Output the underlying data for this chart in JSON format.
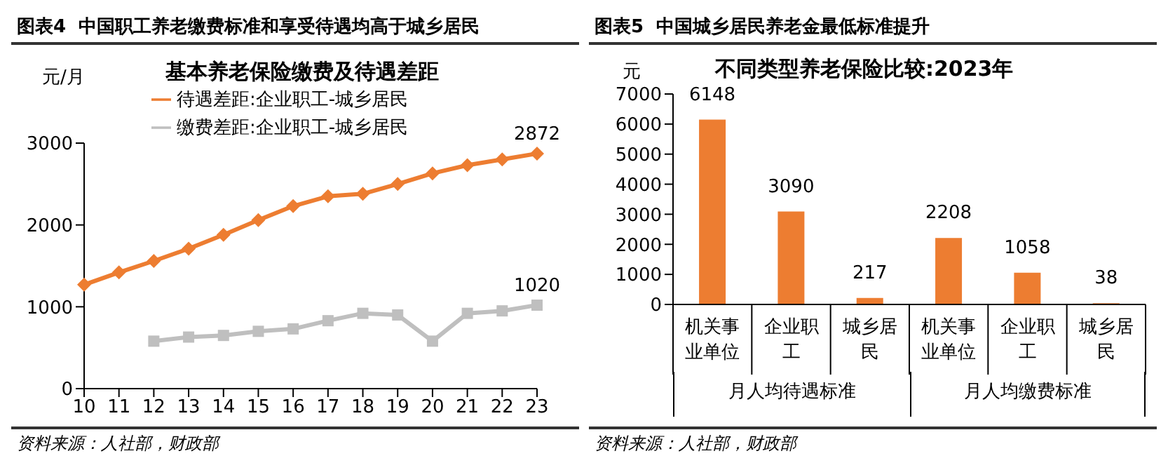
{
  "chart_data": [
    {
      "type": "line",
      "title": "图表4  中国职工养老缴费标准和享受待遇均高于城乡居民",
      "subtitle": "基本养老保险缴费及待遇差距",
      "ylabel": "元/月",
      "categories": [
        "10",
        "11",
        "12",
        "13",
        "14",
        "15",
        "16",
        "17",
        "18",
        "19",
        "20",
        "21",
        "22",
        "23"
      ],
      "series": [
        {
          "name": "待遇差距:企业职工-城乡居民",
          "color": "#ed7d31",
          "marker": "diamond",
          "values": [
            1270,
            1420,
            1560,
            1710,
            1880,
            2060,
            2230,
            2350,
            2380,
            2500,
            2630,
            2730,
            2800,
            2872
          ],
          "value_labels": [
            null,
            null,
            null,
            null,
            null,
            null,
            null,
            null,
            null,
            null,
            null,
            null,
            null,
            "2872"
          ]
        },
        {
          "name": "缴费差距:企业职工-城乡居民",
          "color": "#bfbfbf",
          "marker": "square",
          "values": [
            null,
            null,
            580,
            630,
            650,
            700,
            730,
            830,
            920,
            900,
            580,
            920,
            950,
            1020
          ],
          "value_labels": [
            null,
            null,
            null,
            null,
            null,
            null,
            null,
            null,
            null,
            null,
            null,
            null,
            null,
            "1020"
          ]
        }
      ],
      "ylim": [
        0,
        3000
      ],
      "yticks": [
        0,
        1000,
        2000,
        3000
      ],
      "grid": false,
      "legend": "top",
      "annotations": [
        "资料来源：人社部，财政部"
      ]
    },
    {
      "type": "bar",
      "title": "图表5  中国城乡居民养老金最低标准提升",
      "subtitle": "不同类型养老保险比较:2023年",
      "ylabel": "元",
      "categories": [
        "机关事业单位",
        "企业职工",
        "城乡居民",
        "机关事业单位",
        "企业职工",
        "城乡居民"
      ],
      "values": [
        6148,
        3090,
        217,
        2208,
        1058,
        38
      ],
      "color": "#ed7d31",
      "data_labels": true,
      "ylim": [
        0,
        7000
      ],
      "yticks": [
        0,
        1000,
        2000,
        3000,
        4000,
        5000,
        6000,
        7000
      ],
      "grid": false,
      "annotations": [
        "月人均待遇标准",
        "月人均缴费标准",
        "资料来源：人社部，财政部"
      ]
    }
  ]
}
